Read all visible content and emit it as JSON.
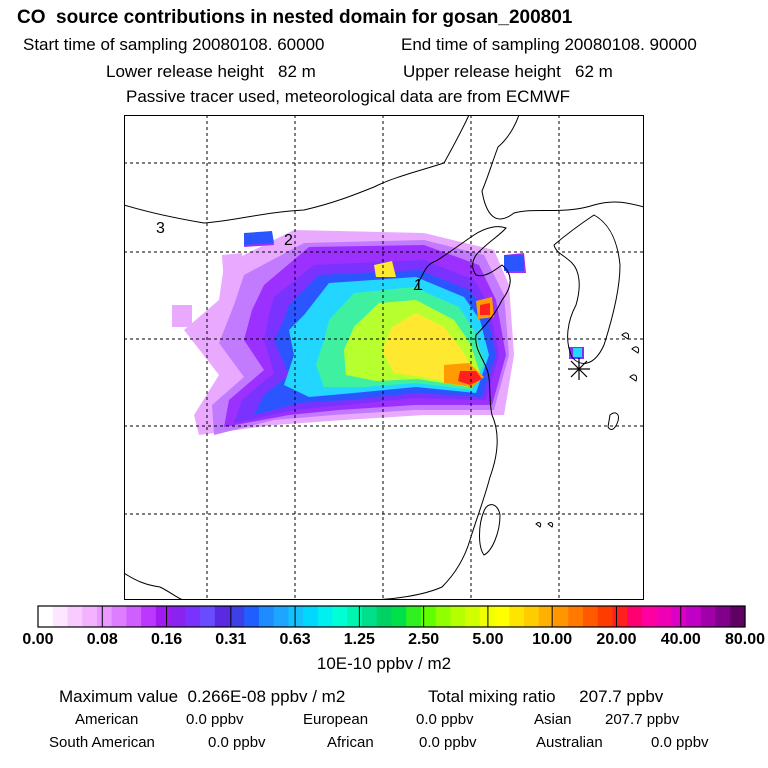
{
  "header": {
    "title": "CO  source contributions in nested domain for gosan_200801",
    "start_label": "Start time of sampling 20080108. 60000",
    "end_label": "End time of sampling 20080108. 90000",
    "lower_release": "Lower release height   82 m",
    "upper_release": "Upper release height   62 m",
    "note": "Passive tracer used, meteorological data are from ECMWF"
  },
  "chart_data": {
    "type": "heatmap",
    "title": "CO  source contributions in nested domain for gosan_200801",
    "region_labels": [
      "1",
      "2",
      "3"
    ],
    "receptor": "gosan",
    "grid": true,
    "colorbar": {
      "tick_labels": [
        "0.00",
        "0.08",
        "0.16",
        "0.31",
        "0.63",
        "1.25",
        "2.50",
        "5.00",
        "10.00",
        "20.00",
        "40.00",
        "80.00"
      ],
      "unit_label": "10E-10 ppbv / m2",
      "colors": [
        "#ffffff",
        "#fde6ff",
        "#f9ccff",
        "#f3b3ff",
        "#e999ff",
        "#dc7eff",
        "#cf5fff",
        "#bc38ff",
        "#a21af2",
        "#8a22f0",
        "#7a33ff",
        "#6a4cff",
        "#5a2ae0",
        "#3f3fe6",
        "#1f5fff",
        "#1e8cff",
        "#1ea5ff",
        "#15c0ff",
        "#00d8ff",
        "#00f0f0",
        "#00ffd2",
        "#00f5b0",
        "#00e08a",
        "#00d264",
        "#00e04a",
        "#30f020",
        "#60ff00",
        "#90ff00",
        "#b4ff00",
        "#d2ff00",
        "#f0ff00",
        "#ffff00",
        "#ffe400",
        "#ffcc00",
        "#ffb000",
        "#ff9600",
        "#ff7800",
        "#ff5a00",
        "#ff3c00",
        "#ff2020",
        "#ff0070",
        "#ff00a0",
        "#f000b4",
        "#dc00c4",
        "#c000c4",
        "#a000a8",
        "#80008c",
        "#600064"
      ]
    },
    "field_levels": {
      "faint": "#e9a9ff",
      "light_purple": "#c27bff",
      "purple": "#9b30ff",
      "violet": "#7a33ff",
      "blue": "#2b56ff",
      "cyan": "#23d6ff",
      "green": "#3ef0a0",
      "lime": "#b8ff30",
      "yellow": "#ffe930",
      "orange": "#ff9a00",
      "red": "#ff2020",
      "magenta": "#ff00a0"
    }
  },
  "stats": {
    "max_value": "Maximum value  0.266E-08 ppbv / m2",
    "total_mixing": "Total mixing ratio     207.7 ppbv",
    "american_label": "American",
    "american_value": "0.0 ppbv",
    "european_label": "European",
    "european_value": "0.0 ppbv",
    "asian_label": "Asian",
    "asian_value": "207.7 ppbv",
    "south_american_label": "South American",
    "south_american_value": "0.0 ppbv",
    "african_label": "African",
    "african_value": "0.0 ppbv",
    "australian_label": "Australian",
    "australian_value": "0.0 ppbv"
  }
}
